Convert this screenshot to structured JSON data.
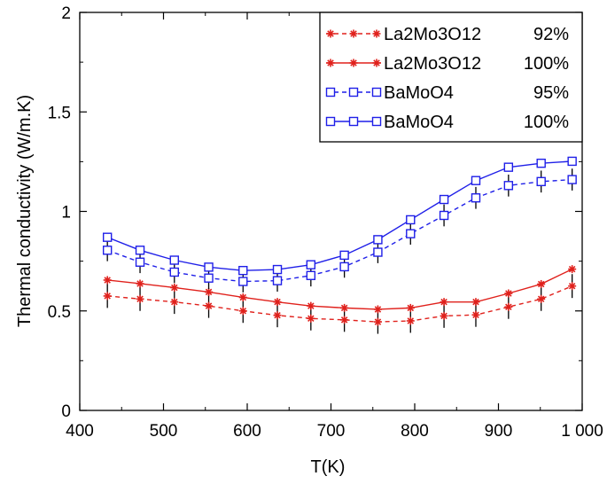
{
  "chart_data": {
    "type": "line",
    "xlabel": "T(K)",
    "ylabel": "Thermal conductivity (W/m.K)",
    "xlim": [
      400,
      1000
    ],
    "ylim": [
      0,
      2
    ],
    "x_ticks": [
      400,
      500,
      600,
      700,
      800,
      900,
      1000
    ],
    "x_tick_labels": [
      "400",
      "500",
      "600",
      "700",
      "800",
      "900",
      "1 000"
    ],
    "y_ticks": [
      0,
      0.5,
      1,
      1.5,
      2
    ],
    "y_tick_labels": [
      "0",
      "0.5",
      "1",
      "1.5",
      "2"
    ],
    "grid": false,
    "legend_position": "top-right",
    "x": [
      433,
      472,
      513,
      554,
      595,
      636,
      676,
      716,
      756,
      795,
      835,
      873,
      912,
      951,
      988
    ],
    "series": [
      {
        "name": "La2Mo3O12",
        "density": "92%",
        "color": "#e0211c",
        "line": "dashed",
        "marker": "asterisk",
        "values": [
          0.575,
          0.56,
          0.545,
          0.525,
          0.5,
          0.478,
          0.462,
          0.455,
          0.445,
          0.45,
          0.475,
          0.48,
          0.52,
          0.56,
          0.625
        ],
        "error": [
          0.06,
          0.06,
          0.06,
          0.06,
          0.06,
          0.06,
          0.06,
          0.06,
          0.06,
          0.06,
          0.06,
          0.06,
          0.06,
          0.06,
          0.06
        ]
      },
      {
        "name": "La2Mo3O12",
        "density": "100%",
        "color": "#e0211c",
        "line": "solid",
        "marker": "asterisk",
        "values": [
          0.655,
          0.637,
          0.617,
          0.595,
          0.568,
          0.545,
          0.525,
          0.515,
          0.508,
          0.515,
          0.545,
          0.545,
          0.588,
          0.635,
          0.71
        ]
      },
      {
        "name": "BaMoO4",
        "density": "95%",
        "color": "#1f1fe8",
        "line": "dashed",
        "marker": "open-square",
        "values": [
          0.805,
          0.745,
          0.695,
          0.665,
          0.648,
          0.652,
          0.678,
          0.722,
          0.795,
          0.888,
          0.98,
          1.068,
          1.13,
          1.15,
          1.16
        ],
        "error": [
          0.055,
          0.055,
          0.055,
          0.055,
          0.055,
          0.055,
          0.055,
          0.055,
          0.055,
          0.055,
          0.055,
          0.055,
          0.055,
          0.055,
          0.055
        ]
      },
      {
        "name": "BaMoO4",
        "density": "100%",
        "color": "#1f1fe8",
        "line": "solid",
        "marker": "open-square",
        "values": [
          0.87,
          0.805,
          0.755,
          0.72,
          0.703,
          0.708,
          0.732,
          0.78,
          0.858,
          0.958,
          1.06,
          1.155,
          1.222,
          1.242,
          1.252
        ]
      }
    ]
  }
}
